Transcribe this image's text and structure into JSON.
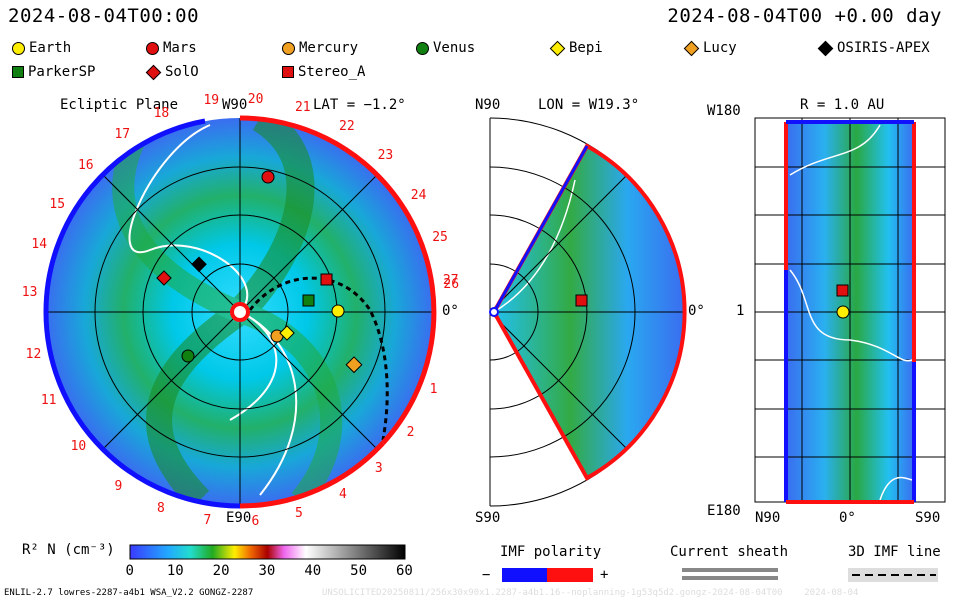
{
  "header": {
    "datetime_left": "2024-08-04T00:00",
    "datetime_right": "2024-08-04T00 +0.00 day"
  },
  "legend": [
    {
      "name": "Earth",
      "shape": "circle",
      "color": "#ffee00"
    },
    {
      "name": "Mars",
      "shape": "circle",
      "color": "#e01010"
    },
    {
      "name": "Mercury",
      "shape": "circle",
      "color": "#f0a020"
    },
    {
      "name": "Venus",
      "shape": "circle",
      "color": "#108010"
    },
    {
      "name": "Bepi",
      "shape": "diamond",
      "color": "#ffee00"
    },
    {
      "name": "Lucy",
      "shape": "diamond",
      "color": "#f0a020"
    },
    {
      "name": "OSIRIS-APEX",
      "shape": "diamond",
      "color": "#000000"
    },
    {
      "name": "ParkerSP",
      "shape": "square",
      "color": "#108010"
    },
    {
      "name": "SolO",
      "shape": "diamond",
      "color": "#e01010"
    },
    {
      "name": "Stereo_A",
      "shape": "square",
      "color": "#e01010"
    }
  ],
  "ecliptic": {
    "title": "Ecliptic Plane",
    "lat": "LAT = −1.2°",
    "top_label": "W90",
    "bottom_label": "E90",
    "right_label": "0°",
    "carrington_ticks": [
      "1",
      "2",
      "3",
      "4",
      "5",
      "6",
      "7",
      "8",
      "9",
      "10",
      "11",
      "12",
      "13",
      "14",
      "15",
      "16",
      "17",
      "18",
      "19",
      "20",
      "21",
      "22",
      "23",
      "24",
      "25",
      "26",
      "27"
    ]
  },
  "meridional": {
    "lon": "LON = W19.3°",
    "top_label": "N90",
    "bottom_label": "S90",
    "right_label": "0°"
  },
  "radial": {
    "r": "R = 1.0 AU",
    "top_left": "W180",
    "mid_left": "1",
    "bottom_left": "E180",
    "x_left": "N90",
    "x_mid": "0°",
    "x_right": "S90"
  },
  "colorbar": {
    "label": "R² N (cm⁻³)",
    "ticks": [
      "0",
      "10",
      "20",
      "30",
      "40",
      "50",
      "60"
    ]
  },
  "imf": {
    "polarity": "IMF polarity",
    "minus": "−",
    "plus": "+",
    "sheath": "Current sheath",
    "line": "3D IMF line"
  },
  "footer": {
    "left": "ENLIL-2.7 lowres-2287-a4b1 WSA_V2.2 GONGZ-2287",
    "right": "UNSOLICITED20250811/256x30x90x1.2287-a4b1.16--noplanning-1g53q5d2.gongz-2024-08-04T00    2024-08-04"
  },
  "colors": {
    "accent_red": "#ff1010",
    "accent_blue": "#1010ff"
  }
}
